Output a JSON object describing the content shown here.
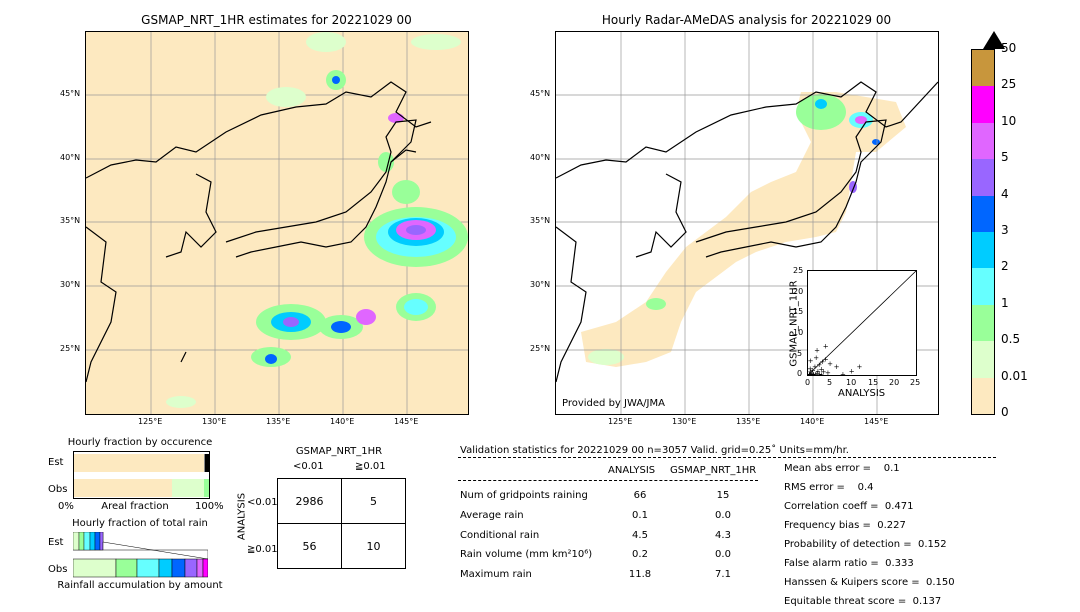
{
  "left_map": {
    "title": "GSMAP_NRT_1HR estimates for 20221029 00",
    "lat_labels": [
      "45°N",
      "40°N",
      "35°N",
      "30°N",
      "25°N"
    ],
    "lon_labels": [
      "125°E",
      "130°E",
      "135°E",
      "140°E",
      "145°E"
    ]
  },
  "right_map": {
    "title": "Hourly Radar-AMeDAS analysis for 20221029 00",
    "lat_labels": [
      "45°N",
      "40°N",
      "35°N",
      "30°N",
      "25°N"
    ],
    "lon_labels": [
      "125°E",
      "130°E",
      "135°E",
      "140°E",
      "145°E"
    ],
    "credit": "Provided by JWA/JMA"
  },
  "colorbar": {
    "labels": [
      "50",
      "25",
      "10",
      "5",
      "4",
      "3",
      "2",
      "1",
      "0.5",
      "0.01",
      "0"
    ],
    "colors": [
      "#c8963c",
      "#ff00ff",
      "#e066ff",
      "#9966ff",
      "#0066ff",
      "#00ccff",
      "#66ffff",
      "#99ff99",
      "#ddffcc",
      "#fde9c0"
    ]
  },
  "chart_data": [
    {
      "type": "scatter",
      "title": "",
      "xlabel": "ANALYSIS",
      "ylabel": "GSMAP_NRT_1HR",
      "xlim": [
        0,
        25
      ],
      "ylim": [
        0,
        25
      ],
      "xticks": [
        "0",
        "5",
        "10",
        "15",
        "20",
        "25"
      ],
      "yticks": [
        "0",
        "5",
        "10",
        "15",
        "20",
        "25"
      ],
      "points": [
        [
          0.3,
          0.2
        ],
        [
          0.5,
          0.8
        ],
        [
          0.8,
          0.4
        ],
        [
          1.0,
          1.2
        ],
        [
          1.2,
          0.3
        ],
        [
          1.5,
          2.0
        ],
        [
          2.0,
          0.5
        ],
        [
          2.2,
          1.0
        ],
        [
          2.5,
          2.5
        ],
        [
          3.0,
          1.5
        ],
        [
          3.2,
          3.2
        ],
        [
          3.5,
          0.8
        ],
        [
          4.0,
          3.8
        ],
        [
          4.5,
          0.6
        ],
        [
          5.0,
          2.8
        ],
        [
          2.0,
          6.0
        ],
        [
          4.0,
          7.0
        ],
        [
          6.5,
          2.0
        ],
        [
          8.0,
          0.2
        ],
        [
          10.0,
          1.0
        ],
        [
          11.8,
          2.0
        ],
        [
          0.5,
          3.5
        ],
        [
          1.8,
          4.2
        ],
        [
          0.2,
          0.1
        ],
        [
          0.6,
          0.1
        ],
        [
          1.1,
          0.1
        ],
        [
          1.6,
          0.2
        ],
        [
          2.6,
          0.2
        ],
        [
          3.0,
          0.1
        ],
        [
          0.4,
          1.6
        ]
      ]
    },
    {
      "type": "bar",
      "title": "Hourly fraction by occurence",
      "xlabel": "Areal fraction",
      "categories": [
        "Est",
        "Obs"
      ],
      "xtick_left": "0%",
      "xtick_right": "100%",
      "series": [
        {
          "values": [
            0.995,
            0.978
          ]
        }
      ]
    },
    {
      "type": "bar",
      "title": "Hourly fraction of total rain",
      "xlabel": "Rainfall accumulation by amount",
      "categories": [
        "Est",
        "Obs"
      ]
    }
  ],
  "contingency": {
    "title": "GSMAP_NRT_1HR",
    "col_labels": [
      "<0.01",
      "≧0.01"
    ],
    "row_axis": "ANALYSIS",
    "row_labels": [
      "<0.01",
      "≧0.01"
    ],
    "cells": [
      [
        "2986",
        "5"
      ],
      [
        "56",
        "10"
      ]
    ]
  },
  "validation": {
    "header": "Validation statistics for 20221029 00  n=3057 Valid. grid=0.25˚ Units=mm/hr.",
    "col_analysis": "ANALYSIS",
    "col_gsmap": "GSMAP_NRT_1HR",
    "rows": [
      {
        "label": "Num of gridpoints raining",
        "a": "66",
        "g": "15"
      },
      {
        "label": "Average rain",
        "a": "0.1",
        "g": "0.0"
      },
      {
        "label": "Conditional rain",
        "a": "4.5",
        "g": "4.3"
      },
      {
        "label": "Rain volume (mm km²10⁶)",
        "a": "0.2",
        "g": "0.0"
      },
      {
        "label": "Maximum rain",
        "a": "11.8",
        "g": "7.1"
      }
    ],
    "scores": [
      "Mean abs error =    0.1",
      "RMS error =    0.4",
      "Correlation coeff =  0.471",
      "Frequency bias =  0.227",
      "Probability of detection =  0.152",
      "False alarm ratio =  0.333",
      "Hanssen & Kuipers score =  0.150",
      "Equitable threat score =  0.137"
    ]
  }
}
